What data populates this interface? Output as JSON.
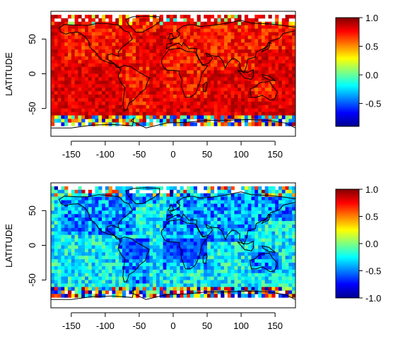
{
  "colormap": [
    "#00008f",
    "#0000ff",
    "#0080ff",
    "#00ffff",
    "#80ff80",
    "#ffff00",
    "#ff8000",
    "#ff0000",
    "#800000"
  ],
  "chart_data": [
    {
      "type": "heatmap",
      "title": "",
      "xlabel": "",
      "ylabel": "LATITUDE",
      "xlim": [
        -180,
        180
      ],
      "ylim": [
        -90,
        90
      ],
      "xticks": [
        -150,
        -100,
        -50,
        0,
        50,
        100,
        150
      ],
      "yticks": [
        50,
        0,
        -50
      ],
      "colorbar": {
        "range": [
          -0.9,
          1.0
        ],
        "ticks": [
          1.0,
          0.5,
          0.0,
          -0.5
        ]
      },
      "grid": "none",
      "field_summary": "Predominantly strongly positive values (0.7 to 1.0) across most land and ocean; lower and noisy values near 60-75S and scattered in high northern latitudes."
    },
    {
      "type": "heatmap",
      "title": "",
      "xlabel": "",
      "ylabel": "LATITUDE",
      "xlim": [
        -180,
        180
      ],
      "ylim": [
        -90,
        90
      ],
      "xticks": [
        -150,
        -100,
        -50,
        0,
        50,
        100,
        150
      ],
      "yticks": [
        50,
        0,
        -50
      ],
      "colorbar": {
        "range": [
          -1.0,
          1.0
        ],
        "ticks": [
          1.0,
          0.5,
          0.0,
          -0.5,
          -1.0
        ]
      },
      "grid": "none",
      "field_summary": "Predominantly weak to moderately negative values (-0.6 to 0.0) with strong negative patches over tropical land; noisy positive and negative cells near 60-75S and the Arctic."
    }
  ]
}
